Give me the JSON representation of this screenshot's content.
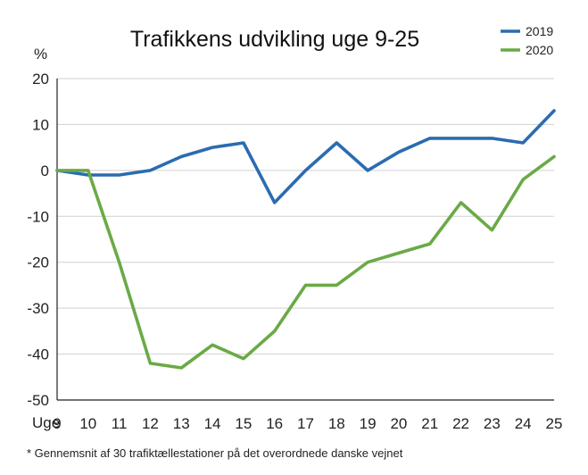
{
  "chart_data": {
    "type": "line",
    "title": "Trafikkens udvikling uge 9-25",
    "ylabel": "%",
    "xlabel": "Uge",
    "x": [
      9,
      10,
      11,
      12,
      13,
      14,
      15,
      16,
      17,
      18,
      19,
      20,
      21,
      22,
      23,
      24,
      25
    ],
    "x_tick_labels": [
      "9",
      "10",
      "11",
      "12",
      "13",
      "14",
      "15",
      "16",
      "17",
      "18",
      "19",
      "20",
      "21",
      "22",
      "23",
      "24",
      "25"
    ],
    "y_tick_labels": [
      "20",
      "10",
      "0",
      "-10",
      "-20",
      "-30",
      "-40",
      "-50"
    ],
    "ylim": [
      -50,
      20
    ],
    "grid": true,
    "legend_position": "top-right",
    "series": [
      {
        "name": "2019",
        "color": "#2b6cb0",
        "values": [
          0,
          -1,
          -1,
          0,
          3,
          5,
          6,
          -7,
          0,
          6,
          0,
          4,
          7,
          7,
          7,
          6,
          13
        ]
      },
      {
        "name": "2020",
        "color": "#6aaa46",
        "values": [
          0,
          0,
          -20,
          -42,
          -43,
          -38,
          -41,
          -35,
          -25,
          -25,
          -20,
          -18,
          -16,
          -7,
          -13,
          -2,
          3
        ]
      }
    ],
    "footnote": "* Gennemsnit af 30 trafiktællestationer på det overordnede danske vejnet"
  }
}
